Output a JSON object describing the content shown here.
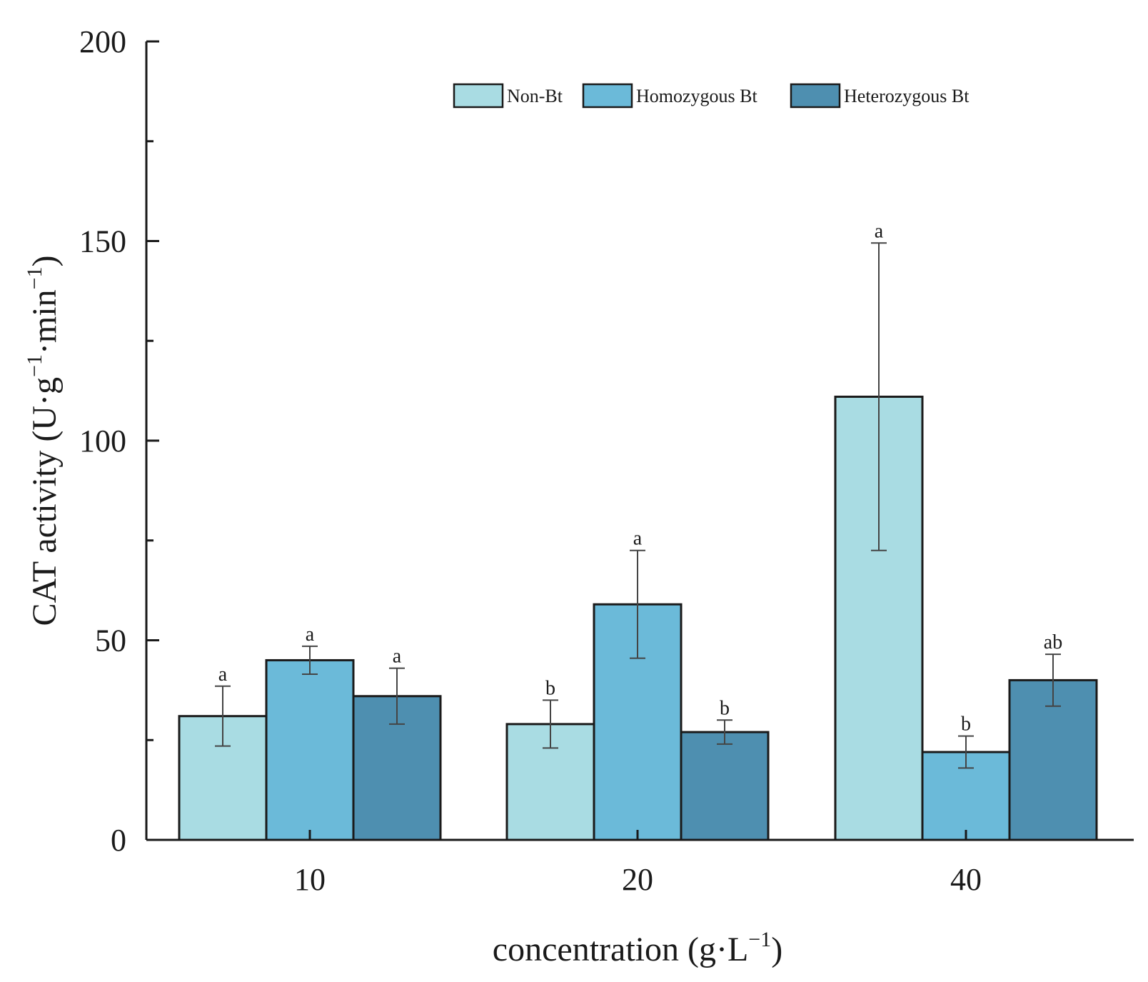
{
  "chart_data": {
    "type": "bar",
    "categories": [
      "10",
      "20",
      "40"
    ],
    "series": [
      {
        "name": "Non-Bt",
        "color": "#a9dce3",
        "values": [
          31,
          29,
          111
        ],
        "errors": [
          7.5,
          6,
          38.5
        ],
        "labels": [
          "a",
          "b",
          "a"
        ]
      },
      {
        "name": "Homozygous Bt",
        "color": "#6bbad9",
        "values": [
          45,
          59,
          22
        ],
        "errors": [
          3.5,
          13.5,
          4
        ],
        "labels": [
          "a",
          "a",
          "b"
        ]
      },
      {
        "name": "Heterozygous Bt",
        "color": "#4e8fb0",
        "values": [
          36,
          27,
          40
        ],
        "errors": [
          7,
          3,
          6.5
        ],
        "labels": [
          "a",
          "b",
          "ab"
        ]
      }
    ],
    "xlabel_main": "concentration (g·L",
    "xlabel_sup": "−1",
    "xlabel_end": ")",
    "ylabel_main": "CAT activity (U·g",
    "ylabel_sup1": "−1",
    "ylabel_mid": "·min",
    "ylabel_sup2": "−1",
    "ylabel_end": ")",
    "ylim": [
      0,
      200
    ],
    "yticks": [
      0,
      50,
      100,
      150,
      200
    ],
    "legend_position": "top-right",
    "grid": false
  }
}
